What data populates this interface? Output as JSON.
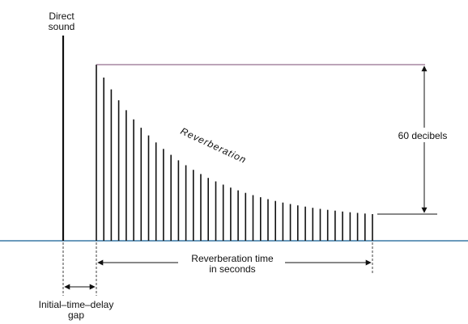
{
  "labels": {
    "direct_sound_line1": "Direct",
    "direct_sound_line2": "sound",
    "reverberation": "Reverberation",
    "decibels": "60 decibels",
    "reverb_time_line1": "Reverberation time",
    "reverb_time_line2": "in seconds",
    "itdg_line1": "Initial–time–delay",
    "itdg_line2": "gap"
  },
  "colors": {
    "baseline": "#3a78a6",
    "lines": "#111111",
    "top_reference": "#7a4a72",
    "background": "#ffffff"
  },
  "chart_data": {
    "type": "bar",
    "reflection_count": 38,
    "decay_curve": "exponential-like decay flattening to the 60 dB reference level"
  }
}
